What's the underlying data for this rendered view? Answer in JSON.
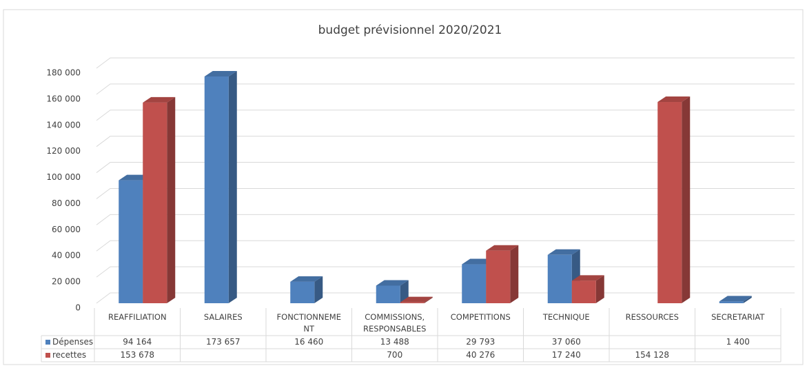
{
  "chart_data": {
    "type": "bar3d",
    "title": "budget prévisionnel 2020/2021",
    "categories": [
      "REAFFILIATION",
      "SALAIRES",
      "FONCTIONNEMENT",
      "COMMISSIONS, RESPONSABLES",
      "COMPETITIONS",
      "TECHNIQUE",
      "RESSOURCES",
      "SECRETARIAT"
    ],
    "series": [
      {
        "name": "Dépenses",
        "color": "#4f81bd",
        "values": [
          94164,
          173657,
          16460,
          13488,
          29793,
          37060,
          null,
          1400
        ],
        "value_labels": [
          "94 164",
          "173 657",
          "16 460",
          "13 488",
          "29 793",
          "37 060",
          null,
          "1 400"
        ]
      },
      {
        "name": "recettes",
        "color": "#c0504d",
        "values": [
          153678,
          null,
          null,
          700,
          40276,
          17240,
          154128,
          null
        ],
        "value_labels": [
          "153 678",
          null,
          null,
          "700",
          "40 276",
          "17 240",
          "154 128",
          null
        ]
      }
    ],
    "ylim": [
      0,
      180000
    ],
    "yticks": [
      0,
      {
        "value": 20000,
        "label": "20 000"
      },
      {
        "value": 40000,
        "label": "40 000"
      },
      {
        "value": 60000,
        "label": "60 000"
      },
      {
        "value": 80000,
        "label": "80 000"
      },
      {
        "value": 100000,
        "label": "100 000"
      },
      {
        "value": 120000,
        "label": "120 000"
      },
      {
        "value": 140000,
        "label": "140 000"
      },
      {
        "value": 160000,
        "label": "160 000"
      },
      {
        "value": 180000,
        "label": "180 000"
      }
    ],
    "grid": true,
    "data_table": true
  }
}
